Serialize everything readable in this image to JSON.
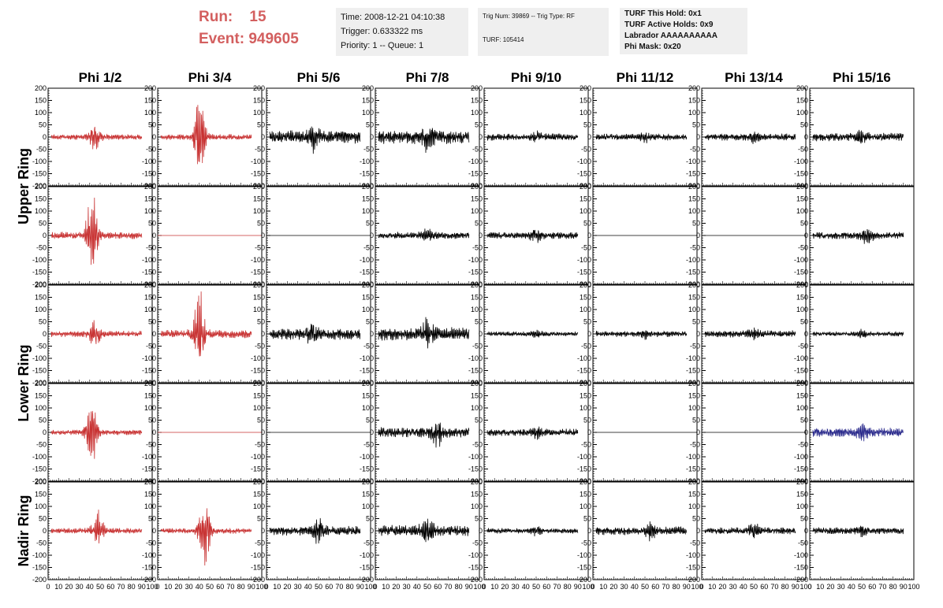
{
  "header": {
    "run_label": "Run:",
    "run_value": "15",
    "event_label": "Event:",
    "event_value": "949605",
    "time_info": [
      "Time: 2008-12-21 04:10:38",
      "Trigger: 0.633322 ms",
      "Priority: 1 -- Queue: 1"
    ],
    "trig_info": [
      "Trig Num: 39869 -- Trig Type: RF",
      "",
      "TURF: 105414"
    ],
    "turf_info": [
      "TURF This Hold: 0x1",
      "TURF Active Holds: 0x9",
      "Labrador AAAAAAAAAA",
      "Phi Mask: 0x20"
    ]
  },
  "colors": {
    "triggered": "#c83232",
    "normal": "#000000",
    "masked": "#2a2a8c",
    "run_text": "#d35f5f",
    "box_bg": "#efefef"
  },
  "chart_data": {
    "type": "line",
    "columns": [
      "Phi 1/2",
      "Phi 3/4",
      "Phi 5/6",
      "Phi 7/8",
      "Phi 9/10",
      "Phi 11/12",
      "Phi 13/14",
      "Phi 15/16"
    ],
    "ring_labels": [
      "Upper Ring",
      "Lower Ring",
      "Nadir Ring"
    ],
    "rows_per_ring": [
      2,
      2,
      1
    ],
    "ylim": [
      -200,
      200
    ],
    "yticks": [
      -200,
      -150,
      -100,
      -50,
      0,
      50,
      100,
      150,
      200
    ],
    "xlim": [
      0,
      100
    ],
    "xtick_labels": [
      "0",
      "10",
      "20",
      "30",
      "40",
      "50",
      "60",
      "70",
      "80",
      "90",
      "100"
    ],
    "panels": [
      [
        {
          "color": "triggered",
          "burst": 45,
          "amp": 60,
          "noise": 12
        },
        {
          "color": "triggered",
          "burst": 40,
          "amp": 200,
          "noise": 12
        },
        {
          "color": "normal",
          "burst": 45,
          "amp": 50,
          "noise": 28
        },
        {
          "color": "normal",
          "burst": 50,
          "amp": 45,
          "noise": 30
        },
        {
          "color": "normal",
          "burst": 50,
          "amp": 15,
          "noise": 15
        },
        {
          "color": "normal",
          "burst": 50,
          "amp": 15,
          "noise": 14
        },
        {
          "color": "normal",
          "burst": 50,
          "amp": 15,
          "noise": 15
        },
        {
          "color": "normal",
          "burst": 50,
          "amp": 20,
          "noise": 18
        }
      ],
      [
        {
          "color": "triggered",
          "burst": 42,
          "amp": 190,
          "noise": 15
        },
        {
          "color": "triggered",
          "flat": true
        },
        {
          "color": "normal",
          "flat": true
        },
        {
          "color": "normal",
          "burst": 50,
          "amp": 20,
          "noise": 15
        },
        {
          "color": "normal",
          "burst": 50,
          "amp": 20,
          "noise": 15
        },
        {
          "color": "normal",
          "flat": true
        },
        {
          "color": "normal",
          "flat": true
        },
        {
          "color": "normal",
          "burst": 55,
          "amp": 30,
          "noise": 15
        }
      ],
      [
        {
          "color": "triggered",
          "burst": 45,
          "amp": 60,
          "noise": 13
        },
        {
          "color": "triggered",
          "burst": 40,
          "amp": 180,
          "noise": 18
        },
        {
          "color": "normal",
          "burst": 45,
          "amp": 45,
          "noise": 25
        },
        {
          "color": "normal",
          "burst": 50,
          "amp": 50,
          "noise": 28
        },
        {
          "color": "normal",
          "burst": 50,
          "amp": 12,
          "noise": 10
        },
        {
          "color": "normal",
          "burst": 50,
          "amp": 15,
          "noise": 13
        },
        {
          "color": "normal",
          "burst": 50,
          "amp": 18,
          "noise": 15
        },
        {
          "color": "normal",
          "burst": 50,
          "amp": 12,
          "noise": 10
        }
      ],
      [
        {
          "color": "triggered",
          "burst": 42,
          "amp": 150,
          "noise": 12
        },
        {
          "color": "triggered",
          "flat": true
        },
        {
          "color": "normal",
          "flat": true
        },
        {
          "color": "normal",
          "burst": 60,
          "amp": 45,
          "noise": 22
        },
        {
          "color": "normal",
          "burst": 50,
          "amp": 20,
          "noise": 15
        },
        {
          "color": "normal",
          "flat": true
        },
        {
          "color": "normal",
          "flat": true
        },
        {
          "color": "masked",
          "burst": 50,
          "amp": 30,
          "noise": 20
        }
      ],
      [
        {
          "color": "triggered",
          "burst": 48,
          "amp": 80,
          "noise": 12
        },
        {
          "color": "triggered",
          "burst": 45,
          "amp": 150,
          "noise": 12
        },
        {
          "color": "normal",
          "burst": 50,
          "amp": 50,
          "noise": 20
        },
        {
          "color": "normal",
          "burst": 50,
          "amp": 45,
          "noise": 25
        },
        {
          "color": "normal",
          "burst": 50,
          "amp": 15,
          "noise": 12
        },
        {
          "color": "normal",
          "burst": 55,
          "amp": 30,
          "noise": 18
        },
        {
          "color": "normal",
          "burst": 50,
          "amp": 25,
          "noise": 15
        },
        {
          "color": "normal",
          "burst": 50,
          "amp": 20,
          "noise": 15
        }
      ]
    ]
  }
}
